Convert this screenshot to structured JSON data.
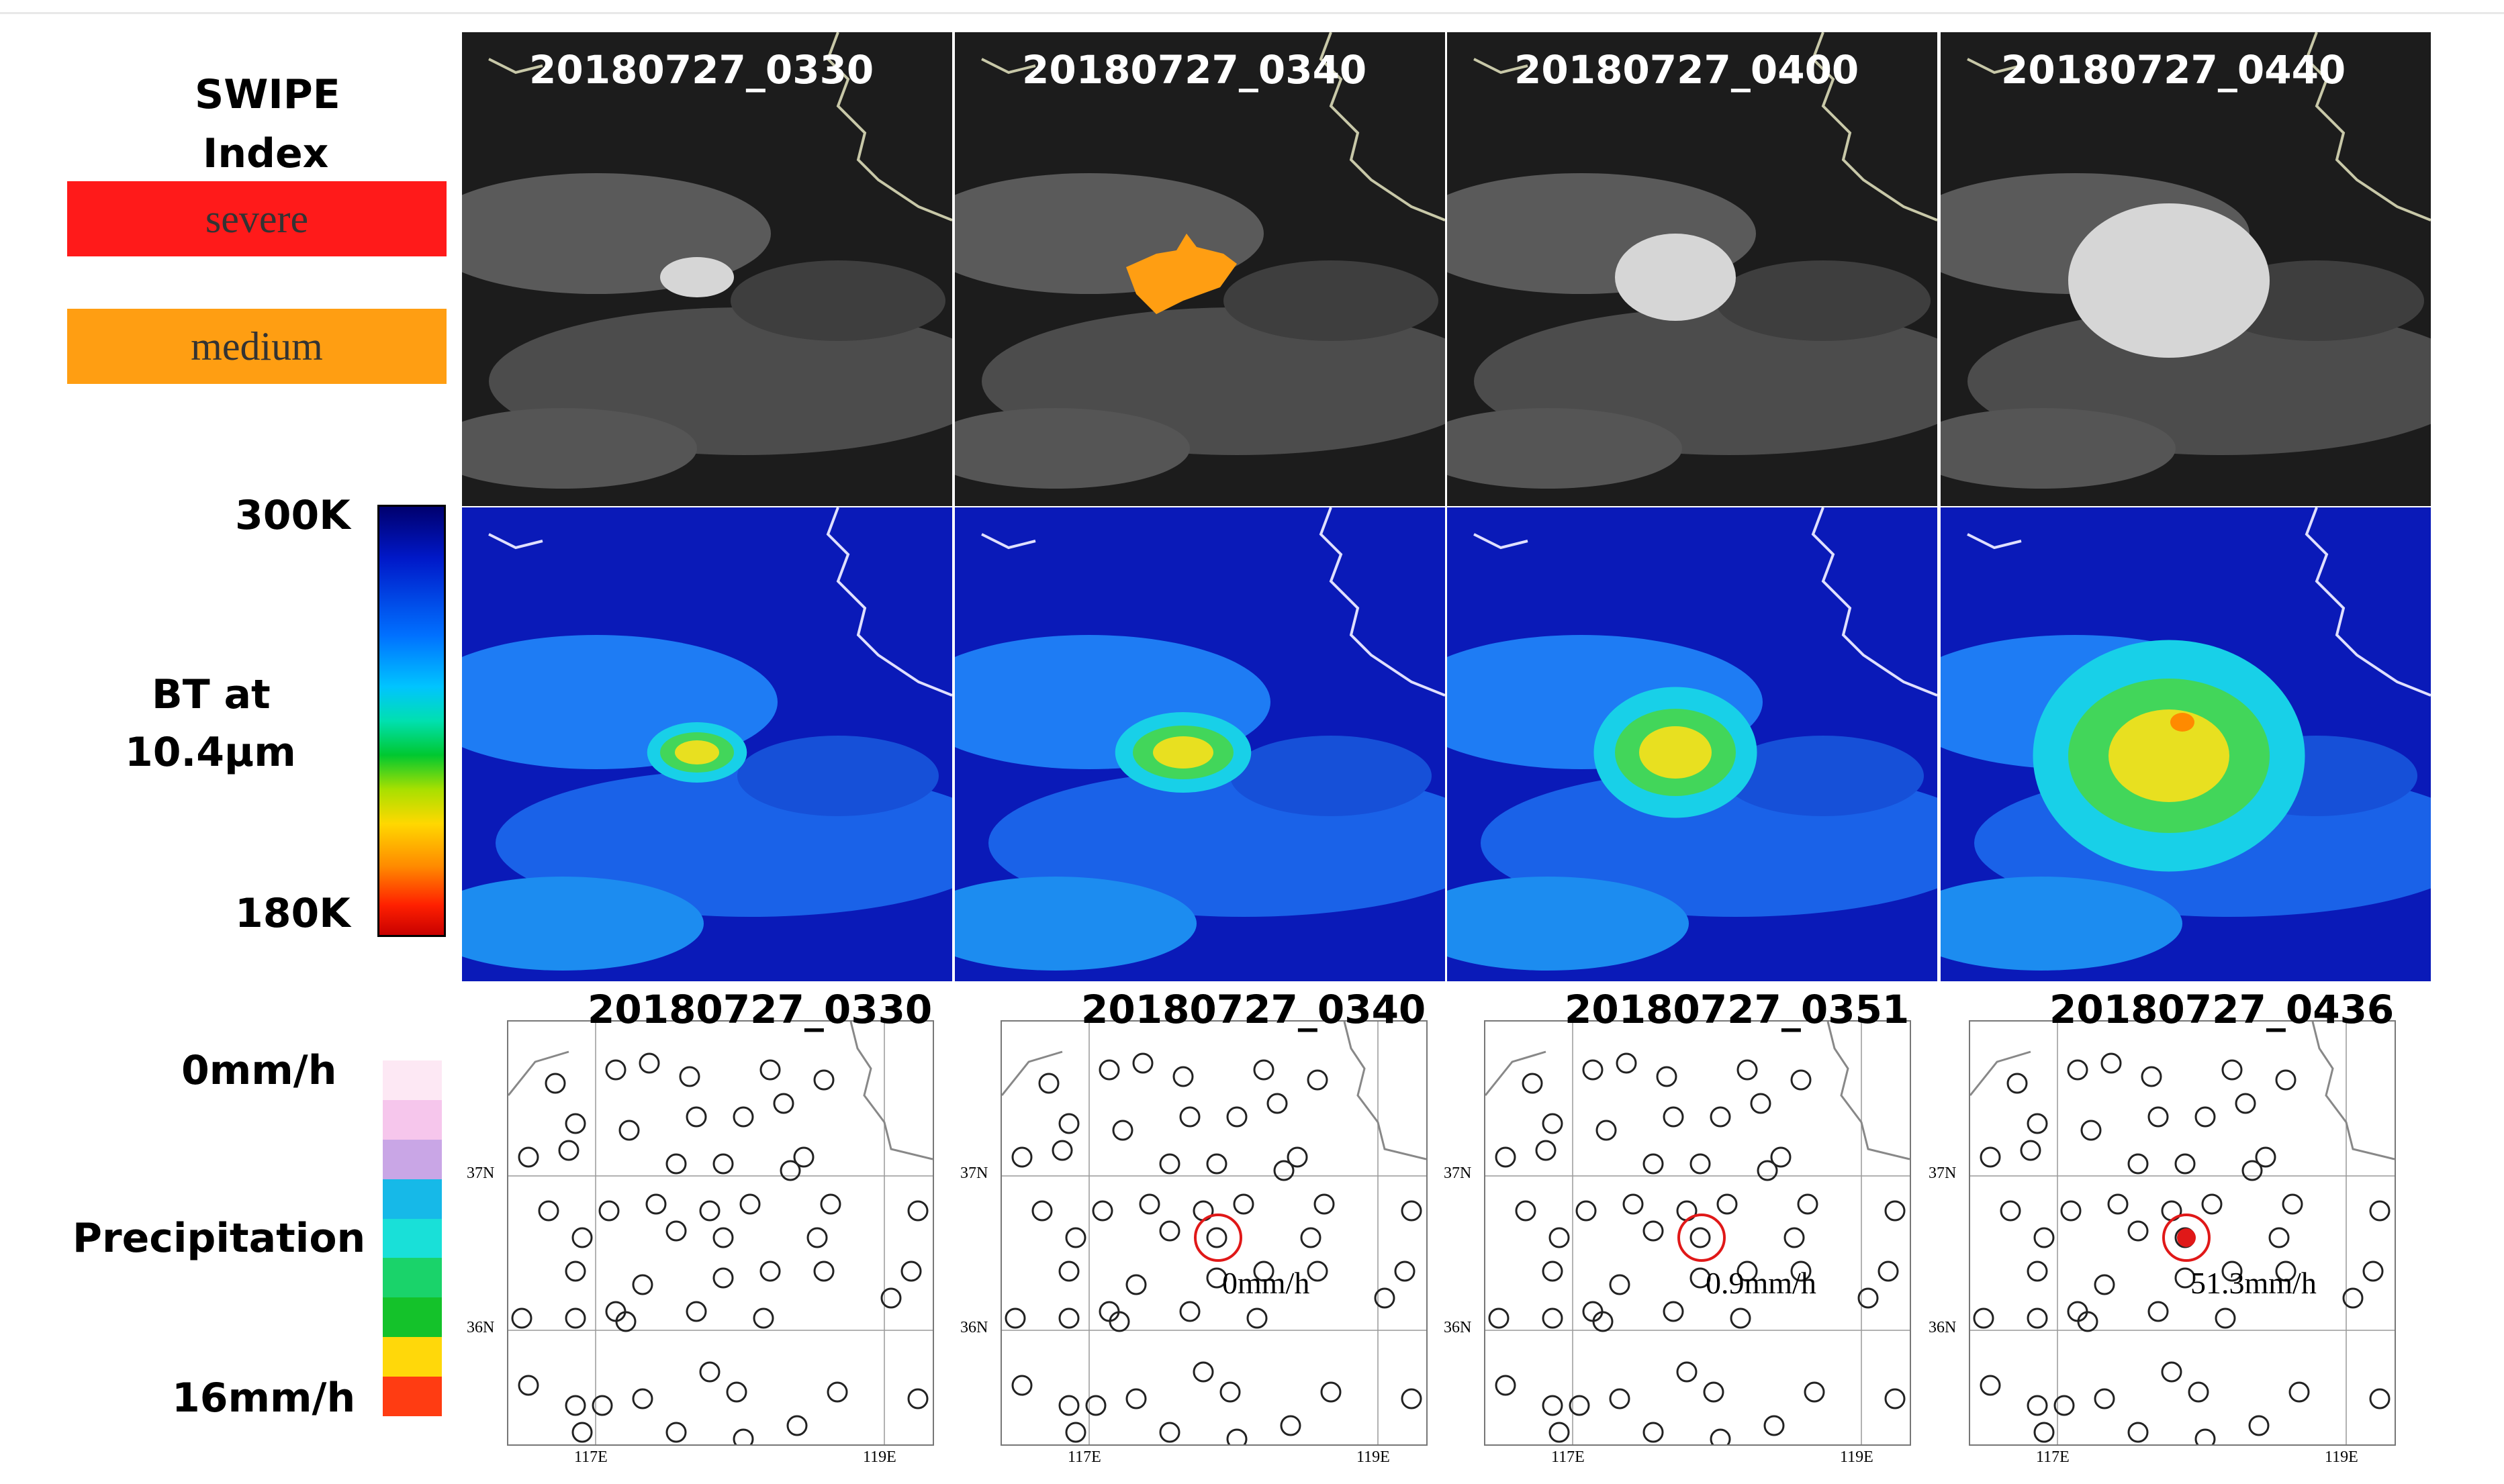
{
  "swipe_label_line1": "SWIPE",
  "swipe_label_line2": "Index",
  "legend": {
    "severe": {
      "label": "severe",
      "color": "#ff1a1a"
    },
    "medium": {
      "label": "medium",
      "color": "#ff9e12"
    }
  },
  "bt": {
    "top": "300K",
    "label_line1": "BT at",
    "label_line2": "10.4μm",
    "bottom": "180K"
  },
  "precip": {
    "top": "0mm/h",
    "label": "Precipitation",
    "bottom": "16mm/h",
    "colors": [
      "#fde8f4",
      "#f6c6ec",
      "#c9a6e6",
      "#16b9e8",
      "#19e0d8",
      "#1ad36a",
      "#14c22a",
      "#ffd80a",
      "#ff3c12"
    ]
  },
  "satellite_times": [
    "20180727_0330",
    "20180727_0340",
    "20180727_0400",
    "20180727_0440"
  ],
  "station_times": [
    "20180727_0330",
    "20180727_0340",
    "20180727_0351",
    "20180727_0436"
  ],
  "station_values": [
    "",
    "0mm/h",
    "0.9mm/h",
    "51.3mm/h"
  ],
  "map_axes": {
    "lat_top": "37N",
    "lat_bottom": "36N",
    "lon_left": "117E",
    "lon_right": "119E"
  }
}
